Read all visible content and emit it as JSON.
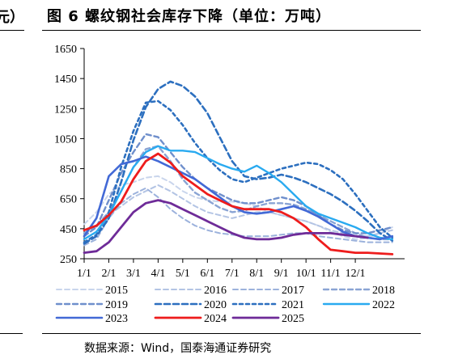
{
  "header": {
    "cut_text": "元）",
    "title": "图 6 螺纹钢社会库存下降（单位：万吨）"
  },
  "source": "数据来源：Wind，国泰海通证券研究",
  "chart_data": {
    "type": "line",
    "title": "图 6 螺纹钢社会库存下降（单位：万吨）",
    "unit": "万吨",
    "ylim": [
      250,
      1650
    ],
    "yticks": [
      250,
      450,
      650,
      850,
      1050,
      1250,
      1450,
      1650
    ],
    "x_ticks": [
      "1/1",
      "2/1",
      "3/1",
      "4/1",
      "5/1",
      "6/1",
      "7/1",
      "8/1",
      "9/1",
      "10/1",
      "11/1",
      "12/1"
    ],
    "x_unit": "month offset from Jan 1",
    "grid": false,
    "legend_position": "bottom",
    "series": [
      {
        "name": "2015",
        "color": "#c9d5ec",
        "dash": "6,4",
        "width": 2,
        "x": [
          0,
          0.5,
          1,
          1.5,
          2,
          2.5,
          3,
          3.5,
          4,
          4.5,
          5,
          5.5,
          6,
          6.5,
          7,
          7.5,
          8,
          8.5,
          9,
          9.5,
          10,
          10.5,
          11,
          11.5,
          12,
          12.5
        ],
        "y": [
          480,
          560,
          680,
          740,
          760,
          790,
          800,
          760,
          700,
          660,
          640,
          630,
          630,
          620,
          600,
          560,
          540,
          520,
          500,
          470,
          430,
          400,
          380,
          390,
          420,
          460
        ]
      },
      {
        "name": "2016",
        "color": "#b3c4e4",
        "dash": "6,4",
        "width": 2,
        "x": [
          0,
          0.5,
          1,
          1.5,
          2,
          2.5,
          3,
          3.5,
          4,
          4.5,
          5,
          5.5,
          6,
          6.5,
          7,
          7.5,
          8,
          8.5,
          9,
          9.5,
          10,
          10.5,
          11,
          11.5,
          12,
          12.5
        ],
        "y": [
          420,
          460,
          540,
          600,
          660,
          700,
          740,
          700,
          650,
          600,
          560,
          540,
          520,
          540,
          560,
          560,
          540,
          520,
          500,
          470,
          440,
          420,
          400,
          400,
          420,
          440
        ]
      },
      {
        "name": "2017",
        "color": "#9cb2dc",
        "dash": "6,4",
        "width": 2,
        "x": [
          0,
          0.5,
          1,
          1.5,
          2,
          2.5,
          3,
          3.5,
          4,
          4.5,
          5,
          5.5,
          6,
          6.5,
          7,
          7.5,
          8,
          8.5,
          9,
          9.5,
          10,
          10.5,
          11,
          11.5,
          12,
          12.5
        ],
        "y": [
          340,
          380,
          520,
          620,
          680,
          720,
          660,
          580,
          520,
          470,
          440,
          420,
          410,
          400,
          400,
          400,
          410,
          420,
          420,
          400,
          390,
          380,
          370,
          360,
          360,
          360
        ]
      },
      {
        "name": "2018",
        "color": "#8aa4d4",
        "dash": "6,4",
        "width": 2.4,
        "x": [
          0,
          0.5,
          1,
          1.5,
          2,
          2.5,
          3,
          3.5,
          4,
          4.5,
          5,
          5.5,
          6,
          6.5,
          7,
          7.5,
          8,
          8.5,
          9,
          9.5,
          10,
          10.5,
          11,
          11.5,
          12,
          12.5
        ],
        "y": [
          420,
          470,
          560,
          700,
          860,
          980,
          1000,
          900,
          780,
          690,
          640,
          590,
          560,
          570,
          600,
          620,
          620,
          610,
          580,
          540,
          500,
          460,
          420,
          390,
          380,
          380
        ]
      },
      {
        "name": "2019",
        "color": "#6f8fcc",
        "dash": "6,4",
        "width": 2.4,
        "x": [
          0,
          0.5,
          1,
          1.5,
          2,
          2.5,
          3,
          3.5,
          4,
          4.5,
          5,
          5.5,
          6,
          6.5,
          7,
          7.5,
          8,
          8.5,
          9,
          9.5,
          10,
          10.5,
          11,
          11.5,
          12,
          12.5
        ],
        "y": [
          400,
          460,
          640,
          820,
          960,
          1080,
          1060,
          960,
          860,
          780,
          720,
          680,
          640,
          620,
          620,
          640,
          660,
          640,
          600,
          540,
          480,
          440,
          420,
          420,
          440,
          460
        ]
      },
      {
        "name": "2020",
        "color": "#2c6fbf",
        "dash": "7,4",
        "width": 2.6,
        "x": [
          0,
          0.5,
          1,
          1.5,
          2,
          2.5,
          3,
          3.5,
          4,
          4.5,
          5,
          5.5,
          6,
          6.5,
          7,
          7.5,
          8,
          8.5,
          9,
          9.5,
          10,
          10.5,
          11,
          11.5,
          12,
          12.5
        ],
        "y": [
          350,
          400,
          520,
          760,
          1040,
          1260,
          1380,
          1430,
          1400,
          1330,
          1220,
          1060,
          900,
          800,
          780,
          790,
          810,
          790,
          760,
          720,
          680,
          630,
          570,
          500,
          420,
          370
        ]
      },
      {
        "name": "2021",
        "color": "#2c6fbf",
        "dash": "4,4",
        "width": 2.6,
        "x": [
          0,
          0.5,
          1,
          1.5,
          2,
          2.5,
          3,
          3.5,
          4,
          4.5,
          5,
          5.5,
          6,
          6.5,
          7,
          7.5,
          8,
          8.5,
          9,
          9.5,
          10,
          10.5,
          11,
          11.5,
          12,
          12.5
        ],
        "y": [
          360,
          410,
          560,
          860,
          1100,
          1290,
          1300,
          1240,
          1140,
          1020,
          920,
          840,
          780,
          760,
          790,
          820,
          850,
          870,
          890,
          880,
          840,
          780,
          680,
          570,
          460,
          390
        ]
      },
      {
        "name": "2022",
        "color": "#29aaf0",
        "dash": "",
        "width": 2.4,
        "x": [
          0,
          0.5,
          1,
          1.5,
          2,
          2.5,
          3,
          3.5,
          4,
          4.5,
          5,
          5.5,
          6,
          6.5,
          7,
          7.5,
          8,
          8.5,
          9,
          9.5,
          10,
          10.5,
          11,
          11.5,
          12,
          12.5
        ],
        "y": [
          380,
          430,
          540,
          700,
          860,
          960,
          1000,
          970,
          970,
          960,
          920,
          880,
          850,
          830,
          870,
          820,
          760,
          680,
          600,
          550,
          520,
          490,
          460,
          420,
          390,
          380
        ]
      },
      {
        "name": "2023",
        "color": "#4269d6",
        "dash": "",
        "width": 2.6,
        "x": [
          0,
          0.5,
          1,
          1.5,
          2,
          2.5,
          3,
          3.5,
          4,
          4.5,
          5,
          5.5,
          6,
          6.5,
          7,
          7.5,
          8,
          8.5,
          9,
          9.5,
          10,
          10.5,
          11,
          11.5,
          12,
          12.5
        ],
        "y": [
          400,
          520,
          800,
          880,
          900,
          930,
          900,
          860,
          820,
          780,
          720,
          660,
          600,
          560,
          550,
          560,
          580,
          600,
          570,
          530,
          480,
          430,
          400,
          390,
          380,
          400
        ]
      },
      {
        "name": "2024",
        "color": "#ee1c1c",
        "dash": "",
        "width": 2.8,
        "x": [
          0,
          0.5,
          1,
          1.5,
          2,
          2.5,
          3,
          3.5,
          4,
          4.5,
          5,
          5.5,
          6,
          6.5,
          7,
          7.5,
          8,
          8.5,
          9,
          9.5,
          10,
          10.5,
          11,
          11.5,
          12,
          12.5
        ],
        "y": [
          440,
          470,
          540,
          630,
          780,
          900,
          950,
          890,
          800,
          740,
          680,
          640,
          600,
          580,
          580,
          580,
          560,
          520,
          460,
          380,
          310,
          300,
          290,
          290,
          285,
          280
        ]
      },
      {
        "name": "2025",
        "color": "#6e2b98",
        "dash": "",
        "width": 2.8,
        "x": [
          0,
          0.5,
          1,
          1.5,
          2,
          2.5,
          3,
          3.5,
          4,
          4.5,
          5,
          5.5,
          6,
          6.5,
          7,
          7.5,
          8,
          8.5,
          9,
          9.5,
          10,
          10.5,
          11,
          11.5
        ],
        "y": [
          290,
          300,
          360,
          460,
          560,
          620,
          640,
          620,
          580,
          540,
          500,
          460,
          420,
          390,
          380,
          380,
          390,
          410,
          420,
          420,
          420,
          410,
          400,
          390
        ]
      }
    ]
  }
}
